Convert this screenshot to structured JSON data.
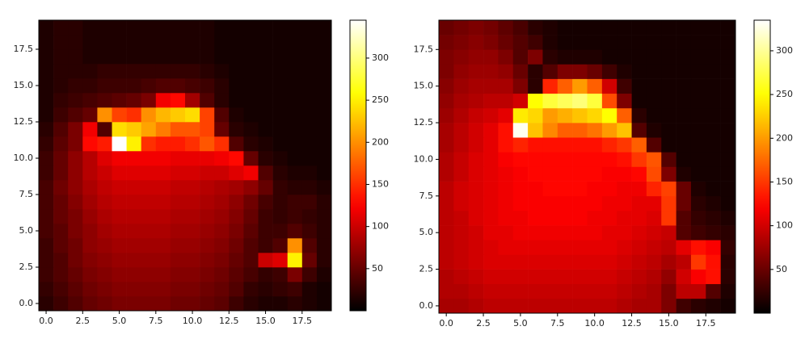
{
  "chart_data": [
    {
      "type": "heatmap",
      "colormap": "hot",
      "xlim": [
        -0.5,
        19.5
      ],
      "ylim": [
        -0.5,
        19.5
      ],
      "clim": [
        0,
        345
      ],
      "xticks": [
        {
          "value": 0,
          "label": "0.0"
        },
        {
          "value": 2.5,
          "label": "2.5"
        },
        {
          "value": 5,
          "label": "5.0"
        },
        {
          "value": 7.5,
          "label": "7.5"
        },
        {
          "value": 10,
          "label": "10.0"
        },
        {
          "value": 12.5,
          "label": "12.5"
        },
        {
          "value": 15,
          "label": "15.0"
        },
        {
          "value": 17.5,
          "label": "17.5"
        }
      ],
      "yticks": [
        {
          "value": 0,
          "label": "0.0"
        },
        {
          "value": 2.5,
          "label": "2.5"
        },
        {
          "value": 5,
          "label": "5.0"
        },
        {
          "value": 7.5,
          "label": "7.5"
        },
        {
          "value": 10,
          "label": "10.0"
        },
        {
          "value": 12.5,
          "label": "12.5"
        },
        {
          "value": 15,
          "label": "15.0"
        },
        {
          "value": 17.5,
          "label": "17.5"
        }
      ],
      "cticks": [
        50,
        100,
        150,
        200,
        250,
        300
      ],
      "z": [
        [
          20,
          30,
          40,
          50,
          55,
          60,
          60,
          60,
          60,
          55,
          55,
          50,
          45,
          30,
          20,
          15,
          15,
          20,
          15,
          10
        ],
        [
          25,
          35,
          45,
          55,
          60,
          65,
          65,
          65,
          65,
          60,
          60,
          55,
          50,
          40,
          25,
          20,
          25,
          30,
          15,
          10
        ],
        [
          30,
          40,
          50,
          60,
          65,
          70,
          70,
          70,
          70,
          65,
          65,
          60,
          55,
          45,
          35,
          25,
          30,
          60,
          30,
          15
        ],
        [
          30,
          40,
          55,
          65,
          70,
          75,
          75,
          75,
          75,
          70,
          70,
          65,
          60,
          50,
          40,
          100,
          110,
          250,
          50,
          20
        ],
        [
          30,
          45,
          55,
          70,
          75,
          80,
          80,
          80,
          80,
          75,
          75,
          70,
          65,
          55,
          40,
          30,
          40,
          200,
          40,
          20
        ],
        [
          35,
          45,
          60,
          70,
          80,
          85,
          85,
          85,
          85,
          80,
          80,
          75,
          70,
          60,
          45,
          30,
          30,
          40,
          30,
          20
        ],
        [
          35,
          50,
          60,
          75,
          85,
          90,
          90,
          90,
          90,
          85,
          85,
          80,
          75,
          65,
          50,
          30,
          25,
          30,
          25,
          20
        ],
        [
          35,
          50,
          65,
          80,
          90,
          95,
          95,
          95,
          95,
          90,
          90,
          85,
          80,
          70,
          55,
          35,
          25,
          30,
          30,
          20
        ],
        [
          35,
          55,
          70,
          85,
          95,
          100,
          100,
          100,
          100,
          95,
          95,
          90,
          85,
          80,
          70,
          50,
          25,
          20,
          20,
          15
        ],
        [
          30,
          50,
          70,
          90,
          100,
          110,
          110,
          110,
          110,
          105,
          105,
          100,
          100,
          110,
          120,
          40,
          20,
          15,
          15,
          10
        ],
        [
          30,
          50,
          70,
          90,
          110,
          120,
          120,
          120,
          120,
          115,
          115,
          115,
          120,
          130,
          50,
          20,
          15,
          10,
          10,
          10
        ],
        [
          25,
          45,
          60,
          130,
          140,
          345,
          250,
          150,
          140,
          140,
          150,
          170,
          150,
          40,
          20,
          15,
          10,
          10,
          10,
          10
        ],
        [
          20,
          40,
          60,
          120,
          40,
          240,
          230,
          210,
          190,
          170,
          170,
          160,
          50,
          20,
          15,
          10,
          10,
          10,
          10,
          10
        ],
        [
          15,
          30,
          40,
          50,
          200,
          160,
          150,
          200,
          220,
          230,
          240,
          160,
          40,
          15,
          10,
          10,
          10,
          10,
          10,
          10
        ],
        [
          15,
          25,
          30,
          35,
          40,
          45,
          50,
          60,
          120,
          130,
          80,
          40,
          20,
          10,
          10,
          10,
          10,
          10,
          10,
          10
        ],
        [
          15,
          20,
          25,
          25,
          30,
          30,
          30,
          35,
          40,
          40,
          35,
          30,
          20,
          10,
          10,
          10,
          10,
          10,
          10,
          10
        ],
        [
          15,
          20,
          20,
          20,
          25,
          25,
          25,
          25,
          25,
          25,
          25,
          20,
          15,
          10,
          10,
          10,
          10,
          10,
          10,
          10
        ],
        [
          15,
          20,
          20,
          15,
          15,
          15,
          15,
          15,
          15,
          15,
          15,
          15,
          10,
          10,
          10,
          10,
          10,
          10,
          10,
          10
        ],
        [
          15,
          20,
          20,
          15,
          15,
          15,
          15,
          15,
          15,
          15,
          15,
          15,
          10,
          10,
          10,
          10,
          10,
          10,
          10,
          10
        ],
        [
          15,
          20,
          20,
          15,
          15,
          15,
          15,
          15,
          15,
          15,
          15,
          15,
          10,
          10,
          10,
          10,
          10,
          10,
          10,
          10
        ]
      ]
    },
    {
      "type": "heatmap",
      "colormap": "hot",
      "xlim": [
        -0.5,
        19.5
      ],
      "ylim": [
        -0.5,
        19.5
      ],
      "clim": [
        0,
        335
      ],
      "xticks": [
        {
          "value": 0,
          "label": "0.0"
        },
        {
          "value": 2.5,
          "label": "2.5"
        },
        {
          "value": 5,
          "label": "5.0"
        },
        {
          "value": 7.5,
          "label": "7.5"
        },
        {
          "value": 10,
          "label": "10.0"
        },
        {
          "value": 12.5,
          "label": "12.5"
        },
        {
          "value": 15,
          "label": "15.0"
        },
        {
          "value": 17.5,
          "label": "17.5"
        }
      ],
      "yticks": [
        {
          "value": 0,
          "label": "0.0"
        },
        {
          "value": 2.5,
          "label": "2.5"
        },
        {
          "value": 5,
          "label": "5.0"
        },
        {
          "value": 7.5,
          "label": "7.5"
        },
        {
          "value": 10,
          "label": "10.0"
        },
        {
          "value": 12.5,
          "label": "12.5"
        },
        {
          "value": 15,
          "label": "15.0"
        },
        {
          "value": 17.5,
          "label": "17.5"
        }
      ],
      "cticks": [
        50,
        100,
        150,
        200,
        250,
        300
      ],
      "z": [
        [
          80,
          80,
          85,
          90,
          90,
          90,
          90,
          90,
          90,
          90,
          90,
          90,
          85,
          80,
          80,
          60,
          30,
          20,
          15,
          10
        ],
        [
          85,
          85,
          90,
          95,
          95,
          95,
          95,
          95,
          95,
          95,
          95,
          95,
          90,
          85,
          80,
          60,
          90,
          90,
          40,
          15
        ],
        [
          85,
          90,
          95,
          100,
          100,
          100,
          100,
          100,
          100,
          100,
          100,
          100,
          95,
          90,
          85,
          70,
          100,
          120,
          130,
          20
        ],
        [
          90,
          95,
          100,
          105,
          105,
          105,
          105,
          105,
          105,
          105,
          105,
          105,
          100,
          95,
          90,
          80,
          90,
          150,
          130,
          20
        ],
        [
          90,
          95,
          100,
          105,
          110,
          110,
          110,
          110,
          110,
          110,
          110,
          110,
          105,
          100,
          95,
          90,
          110,
          130,
          120,
          25
        ],
        [
          90,
          95,
          100,
          110,
          110,
          115,
          115,
          115,
          115,
          115,
          115,
          110,
          110,
          105,
          100,
          95,
          40,
          30,
          25,
          20
        ],
        [
          90,
          95,
          105,
          110,
          115,
          115,
          120,
          120,
          120,
          120,
          115,
          115,
          110,
          110,
          105,
          150,
          40,
          25,
          20,
          15
        ],
        [
          90,
          100,
          105,
          110,
          115,
          120,
          120,
          120,
          120,
          120,
          120,
          115,
          115,
          110,
          110,
          150,
          50,
          20,
          15,
          10
        ],
        [
          90,
          100,
          105,
          110,
          115,
          120,
          120,
          125,
          125,
          125,
          120,
          120,
          115,
          115,
          140,
          155,
          50,
          15,
          10,
          10
        ],
        [
          85,
          95,
          105,
          110,
          115,
          120,
          125,
          125,
          125,
          125,
          125,
          120,
          120,
          125,
          160,
          60,
          15,
          10,
          10,
          10
        ],
        [
          85,
          95,
          105,
          110,
          120,
          125,
          125,
          125,
          125,
          125,
          125,
          125,
          130,
          150,
          165,
          40,
          10,
          10,
          10,
          10
        ],
        [
          80,
          90,
          100,
          110,
          130,
          140,
          130,
          130,
          130,
          130,
          130,
          140,
          150,
          170,
          40,
          10,
          10,
          10,
          10,
          10
        ],
        [
          80,
          90,
          100,
          110,
          130,
          330,
          220,
          190,
          170,
          170,
          180,
          200,
          220,
          40,
          15,
          10,
          10,
          10,
          10,
          10
        ],
        [
          75,
          85,
          95,
          100,
          110,
          240,
          230,
          200,
          210,
          220,
          230,
          250,
          170,
          20,
          10,
          10,
          10,
          10,
          10,
          10
        ],
        [
          70,
          80,
          85,
          90,
          90,
          100,
          250,
          270,
          280,
          290,
          270,
          160,
          60,
          10,
          10,
          10,
          10,
          10,
          10,
          10
        ],
        [
          65,
          75,
          80,
          80,
          80,
          60,
          20,
          140,
          170,
          200,
          170,
          100,
          30,
          10,
          10,
          10,
          10,
          10,
          10,
          10
        ],
        [
          60,
          70,
          75,
          75,
          70,
          50,
          20,
          40,
          60,
          60,
          50,
          30,
          15,
          10,
          10,
          10,
          10,
          10,
          10,
          10
        ],
        [
          60,
          65,
          70,
          70,
          60,
          40,
          60,
          20,
          15,
          15,
          15,
          10,
          10,
          10,
          10,
          10,
          10,
          10,
          10,
          10
        ],
        [
          55,
          60,
          65,
          60,
          50,
          40,
          30,
          15,
          10,
          10,
          10,
          10,
          10,
          10,
          10,
          10,
          10,
          10,
          10,
          10
        ],
        [
          50,
          55,
          60,
          55,
          45,
          35,
          20,
          15,
          10,
          10,
          10,
          10,
          10,
          10,
          10,
          10,
          10,
          10,
          10,
          10
        ]
      ]
    }
  ]
}
